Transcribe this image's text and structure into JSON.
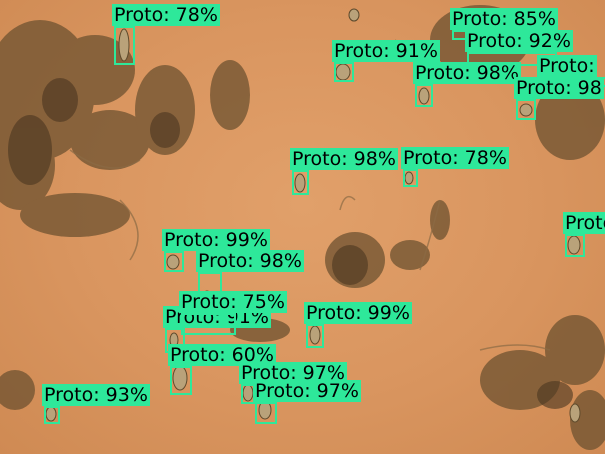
{
  "image": {
    "subject": "microscope field of protozoa and debris",
    "box_color": "#2ee89a",
    "label_text_color": "#000000",
    "background_color": "#d9955f"
  },
  "detections": [
    {
      "label": "Proto: 78%"
    },
    {
      "label": "Proto: 85%"
    },
    {
      "label": "Proto: 92%"
    },
    {
      "label": "Proto: 91%"
    },
    {
      "label": "Proto: 98%"
    },
    {
      "label": "Proto:"
    },
    {
      "label": "Proto: 98"
    },
    {
      "label": "Proto: 98%"
    },
    {
      "label": "Proto: 78%"
    },
    {
      "label": "Proto"
    },
    {
      "label": "Proto: 99%"
    },
    {
      "label": "Proto: 98%"
    },
    {
      "label": "Proto: 91%"
    },
    {
      "label": "Proto: 75%"
    },
    {
      "label": "Proto: 99%"
    },
    {
      "label": "Proto: 60%"
    },
    {
      "label": "Proto: 97%"
    },
    {
      "label": "Proto: 97%"
    },
    {
      "label": "Proto: 93%"
    }
  ]
}
